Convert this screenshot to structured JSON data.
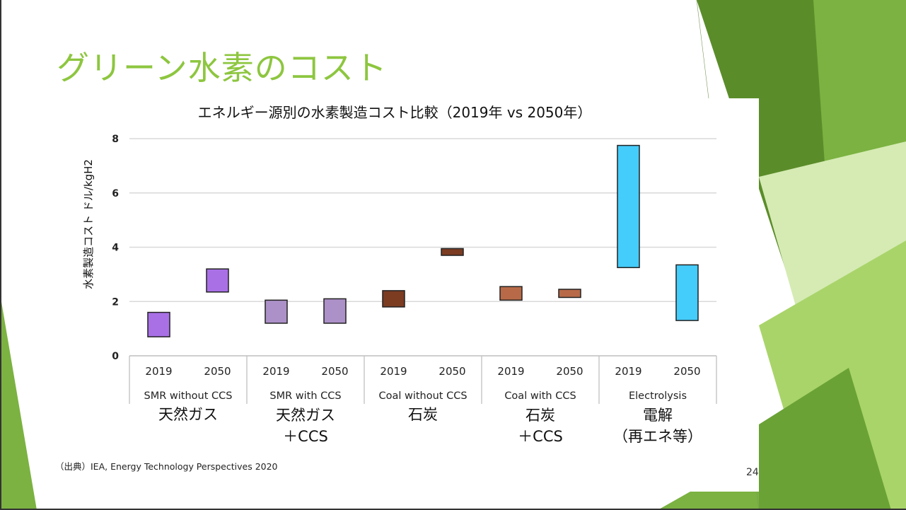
{
  "slide": {
    "title": "グリーン水素のコスト",
    "source": "（出典）IEA, Energy Technology Perspectives 2020",
    "page_number": "24",
    "colors": {
      "title": "#8DC63F",
      "green_dark": "#5B8C2A",
      "green_mid": "#7BB241",
      "green_light": "#A9D46A",
      "green_pale": "#D5EBB3"
    }
  },
  "chart_data": {
    "type": "floating-bar",
    "title": "エネルギー源別の水素製造コスト比較（2019年 vs 2050年）",
    "ylabel": "水素製造コスト ドル/kgH2",
    "ylim": [
      0,
      8
    ],
    "yticks": [
      "0",
      "2",
      "4",
      "6",
      "8"
    ],
    "grid": true,
    "groups": [
      {
        "name": "SMR without CCS",
        "jp_label": [
          "天然ガス"
        ],
        "color": "#A970E6",
        "bars": [
          {
            "year": "2019",
            "low": 0.7,
            "high": 1.6
          },
          {
            "year": "2050",
            "low": 2.35,
            "high": 3.2
          }
        ]
      },
      {
        "name": "SMR with CCS",
        "jp_label": [
          "天然ガス",
          "＋CCS"
        ],
        "color": "#AC91C8",
        "bars": [
          {
            "year": "2019",
            "low": 1.2,
            "high": 2.05
          },
          {
            "year": "2050",
            "low": 1.2,
            "high": 2.1
          }
        ]
      },
      {
        "name": "Coal without CCS",
        "jp_label": [
          "石炭"
        ],
        "color": "#7B3C22",
        "bars": [
          {
            "year": "2019",
            "low": 1.8,
            "high": 2.4
          },
          {
            "year": "2050",
            "low": 3.7,
            "high": 3.95
          }
        ]
      },
      {
        "name": "Coal with CCS",
        "jp_label": [
          "石炭",
          "＋CCS"
        ],
        "color": "#B86A48",
        "bars": [
          {
            "year": "2019",
            "low": 2.05,
            "high": 2.55
          },
          {
            "year": "2050",
            "low": 2.15,
            "high": 2.45
          }
        ]
      },
      {
        "name": "Electrolysis",
        "jp_label": [
          "電解",
          "（再エネ等）"
        ],
        "color": "#44CCFA",
        "bars": [
          {
            "year": "2019",
            "low": 3.25,
            "high": 7.75
          },
          {
            "year": "2050",
            "low": 1.3,
            "high": 3.35
          }
        ]
      }
    ]
  }
}
